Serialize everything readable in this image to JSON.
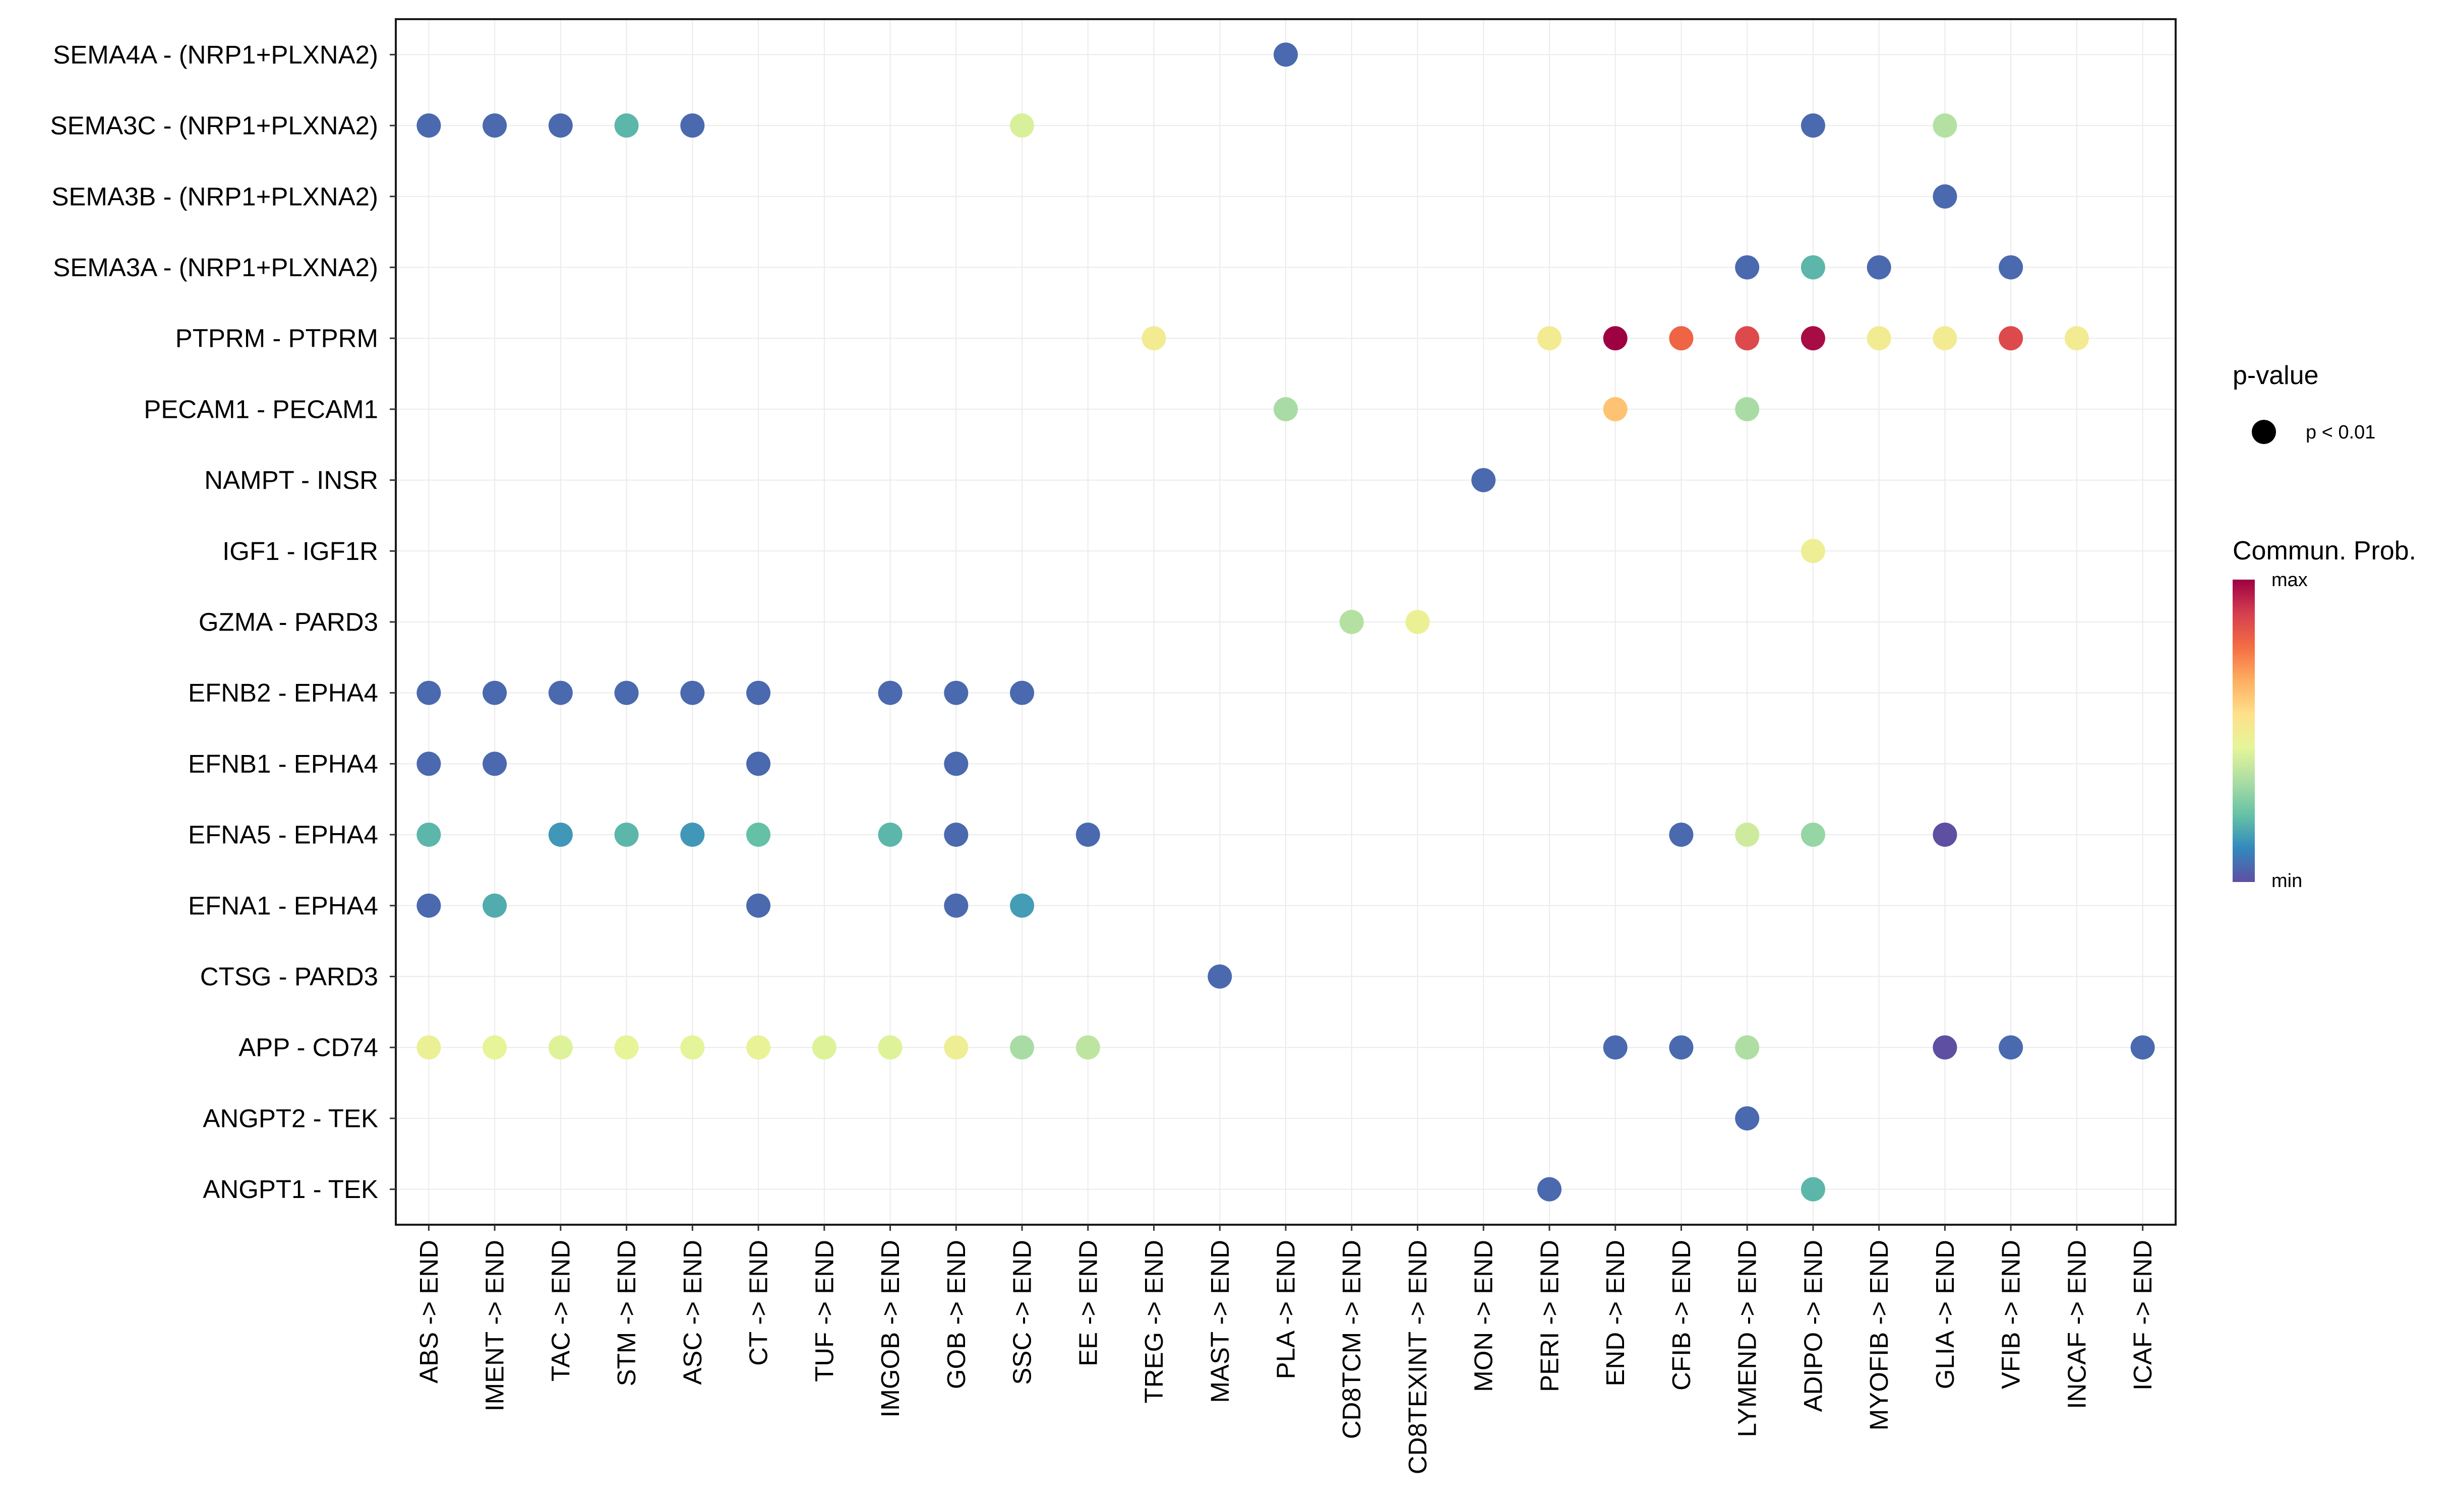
{
  "chart_data": {
    "type": "dot",
    "title": "",
    "xlabel": "",
    "ylabel": "",
    "x_categories": [
      "ABS -> END",
      "IMENT -> END",
      "TAC -> END",
      "STM -> END",
      "ASC -> END",
      "CT -> END",
      "TUF -> END",
      "IMGOB -> END",
      "GOB -> END",
      "SSC -> END",
      "EE -> END",
      "TREG -> END",
      "MAST -> END",
      "PLA -> END",
      "CD8TCM -> END",
      "CD8TEXINT -> END",
      "MON -> END",
      "PERI -> END",
      "END -> END",
      "CFIB -> END",
      "LYMEND -> END",
      "ADIPO -> END",
      "MYOFIB -> END",
      "GLIA -> END",
      "VFIB -> END",
      "INCAF -> END",
      "ICAF -> END"
    ],
    "y_categories": [
      "SEMA4A - (NRP1+PLXNA2)",
      "SEMA3C - (NRP1+PLXNA2)",
      "SEMA3B - (NRP1+PLXNA2)",
      "SEMA3A - (NRP1+PLXNA2)",
      "PTPRM - PTPRM",
      "PECAM1 - PECAM1",
      "NAMPT - INSR",
      "IGF1 - IGF1R",
      "GZMA - PARD3",
      "EFNB2 - EPHA4",
      "EFNB1 - EPHA4",
      "EFNA5 - EPHA4",
      "EFNA1 - EPHA4",
      "CTSG - PARD3",
      "APP - CD74",
      "ANGPT2 - TEK",
      "ANGPT1 - TEK"
    ],
    "color_scale": "Spectral (min = violet-blue, max = dark red)",
    "points": [
      {
        "y": "SEMA4A - (NRP1+PLXNA2)",
        "x": "PLA -> END",
        "prob": 0.05
      },
      {
        "y": "SEMA3C - (NRP1+PLXNA2)",
        "x": "ABS -> END",
        "prob": 0.05
      },
      {
        "y": "SEMA3C - (NRP1+PLXNA2)",
        "x": "IMENT -> END",
        "prob": 0.05
      },
      {
        "y": "SEMA3C - (NRP1+PLXNA2)",
        "x": "TAC -> END",
        "prob": 0.05
      },
      {
        "y": "SEMA3C - (NRP1+PLXNA2)",
        "x": "STM -> END",
        "prob": 0.2
      },
      {
        "y": "SEMA3C - (NRP1+PLXNA2)",
        "x": "ASC -> END",
        "prob": 0.05
      },
      {
        "y": "SEMA3C - (NRP1+PLXNA2)",
        "x": "SSC -> END",
        "prob": 0.42
      },
      {
        "y": "SEMA3C - (NRP1+PLXNA2)",
        "x": "ADIPO -> END",
        "prob": 0.05
      },
      {
        "y": "SEMA3C - (NRP1+PLXNA2)",
        "x": "GLIA -> END",
        "prob": 0.35
      },
      {
        "y": "SEMA3B - (NRP1+PLXNA2)",
        "x": "GLIA -> END",
        "prob": 0.05
      },
      {
        "y": "SEMA3A - (NRP1+PLXNA2)",
        "x": "LYMEND -> END",
        "prob": 0.05
      },
      {
        "y": "SEMA3A - (NRP1+PLXNA2)",
        "x": "ADIPO -> END",
        "prob": 0.2
      },
      {
        "y": "SEMA3A - (NRP1+PLXNA2)",
        "x": "MYOFIB -> END",
        "prob": 0.05
      },
      {
        "y": "SEMA3A - (NRP1+PLXNA2)",
        "x": "VFIB -> END",
        "prob": 0.05
      },
      {
        "y": "PTPRM - PTPRM",
        "x": "TREG -> END",
        "prob": 0.5
      },
      {
        "y": "PTPRM - PTPRM",
        "x": "PERI -> END",
        "prob": 0.5
      },
      {
        "y": "PTPRM - PTPRM",
        "x": "END -> END",
        "prob": 1.0
      },
      {
        "y": "PTPRM - PTPRM",
        "x": "CFIB -> END",
        "prob": 0.8
      },
      {
        "y": "PTPRM - PTPRM",
        "x": "LYMEND -> END",
        "prob": 0.86
      },
      {
        "y": "PTPRM - PTPRM",
        "x": "ADIPO -> END",
        "prob": 0.98
      },
      {
        "y": "PTPRM - PTPRM",
        "x": "MYOFIB -> END",
        "prob": 0.5
      },
      {
        "y": "PTPRM - PTPRM",
        "x": "GLIA -> END",
        "prob": 0.5
      },
      {
        "y": "PTPRM - PTPRM",
        "x": "VFIB -> END",
        "prob": 0.86
      },
      {
        "y": "PTPRM - PTPRM",
        "x": "INCAF -> END",
        "prob": 0.5
      },
      {
        "y": "PECAM1 - PECAM1",
        "x": "PLA -> END",
        "prob": 0.33
      },
      {
        "y": "PECAM1 - PECAM1",
        "x": "END -> END",
        "prob": 0.62
      },
      {
        "y": "PECAM1 - PECAM1",
        "x": "LYMEND -> END",
        "prob": 0.33
      },
      {
        "y": "NAMPT - INSR",
        "x": "MON -> END",
        "prob": 0.05
      },
      {
        "y": "IGF1 - IGF1R",
        "x": "ADIPO -> END",
        "prob": 0.48
      },
      {
        "y": "GZMA - PARD3",
        "x": "CD8TCM -> END",
        "prob": 0.35
      },
      {
        "y": "GZMA - PARD3",
        "x": "CD8TEXINT -> END",
        "prob": 0.47
      },
      {
        "y": "EFNB2 - EPHA4",
        "x": "ABS -> END",
        "prob": 0.05
      },
      {
        "y": "EFNB2 - EPHA4",
        "x": "IMENT -> END",
        "prob": 0.05
      },
      {
        "y": "EFNB2 - EPHA4",
        "x": "TAC -> END",
        "prob": 0.05
      },
      {
        "y": "EFNB2 - EPHA4",
        "x": "STM -> END",
        "prob": 0.05
      },
      {
        "y": "EFNB2 - EPHA4",
        "x": "ASC -> END",
        "prob": 0.05
      },
      {
        "y": "EFNB2 - EPHA4",
        "x": "CT -> END",
        "prob": 0.05
      },
      {
        "y": "EFNB2 - EPHA4",
        "x": "IMGOB -> END",
        "prob": 0.05
      },
      {
        "y": "EFNB2 - EPHA4",
        "x": "GOB -> END",
        "prob": 0.05
      },
      {
        "y": "EFNB2 - EPHA4",
        "x": "SSC -> END",
        "prob": 0.05
      },
      {
        "y": "EFNB1 - EPHA4",
        "x": "ABS -> END",
        "prob": 0.05
      },
      {
        "y": "EFNB1 - EPHA4",
        "x": "IMENT -> END",
        "prob": 0.05
      },
      {
        "y": "EFNB1 - EPHA4",
        "x": "CT -> END",
        "prob": 0.05
      },
      {
        "y": "EFNB1 - EPHA4",
        "x": "GOB -> END",
        "prob": 0.05
      },
      {
        "y": "EFNA5 - EPHA4",
        "x": "ABS -> END",
        "prob": 0.2
      },
      {
        "y": "EFNA5 - EPHA4",
        "x": "TAC -> END",
        "prob": 0.14
      },
      {
        "y": "EFNA5 - EPHA4",
        "x": "STM -> END",
        "prob": 0.2
      },
      {
        "y": "EFNA5 - EPHA4",
        "x": "ASC -> END",
        "prob": 0.14
      },
      {
        "y": "EFNA5 - EPHA4",
        "x": "CT -> END",
        "prob": 0.22
      },
      {
        "y": "EFNA5 - EPHA4",
        "x": "IMGOB -> END",
        "prob": 0.2
      },
      {
        "y": "EFNA5 - EPHA4",
        "x": "GOB -> END",
        "prob": 0.05
      },
      {
        "y": "EFNA5 - EPHA4",
        "x": "EE -> END",
        "prob": 0.05
      },
      {
        "y": "EFNA5 - EPHA4",
        "x": "CFIB -> END",
        "prob": 0.05
      },
      {
        "y": "EFNA5 - EPHA4",
        "x": "LYMEND -> END",
        "prob": 0.4
      },
      {
        "y": "EFNA5 - EPHA4",
        "x": "ADIPO -> END",
        "prob": 0.3
      },
      {
        "y": "EFNA5 - EPHA4",
        "x": "GLIA -> END",
        "prob": 0.0
      },
      {
        "y": "EFNA1 - EPHA4",
        "x": "ABS -> END",
        "prob": 0.05
      },
      {
        "y": "EFNA1 - EPHA4",
        "x": "IMENT -> END",
        "prob": 0.18
      },
      {
        "y": "EFNA1 - EPHA4",
        "x": "CT -> END",
        "prob": 0.05
      },
      {
        "y": "EFNA1 - EPHA4",
        "x": "GOB -> END",
        "prob": 0.05
      },
      {
        "y": "EFNA1 - EPHA4",
        "x": "SSC -> END",
        "prob": 0.15
      },
      {
        "y": "CTSG - PARD3",
        "x": "MAST -> END",
        "prob": 0.05
      },
      {
        "y": "APP - CD74",
        "x": "ABS -> END",
        "prob": 0.47
      },
      {
        "y": "APP - CD74",
        "x": "IMENT -> END",
        "prob": 0.45
      },
      {
        "y": "APP - CD74",
        "x": "TAC -> END",
        "prob": 0.43
      },
      {
        "y": "APP - CD74",
        "x": "STM -> END",
        "prob": 0.45
      },
      {
        "y": "APP - CD74",
        "x": "ASC -> END",
        "prob": 0.44
      },
      {
        "y": "APP - CD74",
        "x": "CT -> END",
        "prob": 0.46
      },
      {
        "y": "APP - CD74",
        "x": "TUF -> END",
        "prob": 0.43
      },
      {
        "y": "APP - CD74",
        "x": "IMGOB -> END",
        "prob": 0.43
      },
      {
        "y": "APP - CD74",
        "x": "GOB -> END",
        "prob": 0.48
      },
      {
        "y": "APP - CD74",
        "x": "SSC -> END",
        "prob": 0.33
      },
      {
        "y": "APP - CD74",
        "x": "EE -> END",
        "prob": 0.37
      },
      {
        "y": "APP - CD74",
        "x": "END -> END",
        "prob": 0.05
      },
      {
        "y": "APP - CD74",
        "x": "CFIB -> END",
        "prob": 0.05
      },
      {
        "y": "APP - CD74",
        "x": "LYMEND -> END",
        "prob": 0.34
      },
      {
        "y": "APP - CD74",
        "x": "GLIA -> END",
        "prob": 0.0
      },
      {
        "y": "APP - CD74",
        "x": "VFIB -> END",
        "prob": 0.05
      },
      {
        "y": "APP - CD74",
        "x": "ICAF -> END",
        "prob": 0.05
      },
      {
        "y": "ANGPT2 - TEK",
        "x": "LYMEND -> END",
        "prob": 0.05
      },
      {
        "y": "ANGPT1 - TEK",
        "x": "PERI -> END",
        "prob": 0.05
      },
      {
        "y": "ANGPT1 - TEK",
        "x": "ADIPO -> END",
        "prob": 0.2
      }
    ],
    "legend": {
      "size_title": "p-value",
      "size_label": "p < 0.01",
      "color_title": "Commun. Prob.",
      "color_max_label": "max",
      "color_min_label": "min"
    }
  },
  "colors": {
    "spectral": [
      "#5E4FA2",
      "#3288BD",
      "#66C2A5",
      "#ABDDA4",
      "#E6F598",
      "#FEE08B",
      "#FDAE61",
      "#F46D43",
      "#D53E4F",
      "#9E0142"
    ],
    "border": "#1a1a1a",
    "grid": "#ebebeb"
  }
}
